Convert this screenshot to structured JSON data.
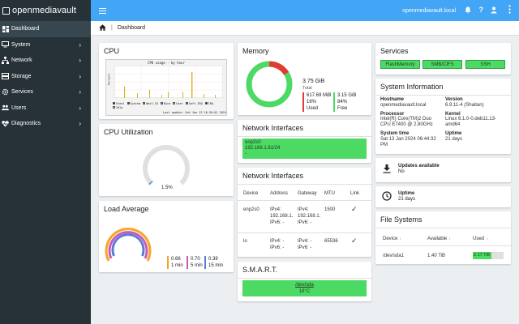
{
  "app": {
    "logo_text": "openmediavault",
    "hostname": "openmediavault.local"
  },
  "colors": {
    "sidebar": "#263238",
    "topbar": "#42a5f5",
    "accent_green": "#4cd964",
    "warn_red": "#e53935",
    "gauge_grey": "#e0e0e0"
  },
  "sidebar": {
    "items": [
      {
        "label": "Dashboard",
        "icon": "dashboard-icon"
      },
      {
        "label": "System",
        "icon": "monitor-icon"
      },
      {
        "label": "Network",
        "icon": "network-icon"
      },
      {
        "label": "Storage",
        "icon": "storage-icon"
      },
      {
        "label": "Services",
        "icon": "services-icon"
      },
      {
        "label": "Users",
        "icon": "users-icon"
      },
      {
        "label": "Diagnostics",
        "icon": "diagnostics-icon"
      }
    ]
  },
  "breadcrumb": {
    "current": "Dashboard"
  },
  "cpu": {
    "title": "CPU",
    "chart_title": "CPU usage - by hour",
    "y_axis_label": "Percent",
    "legend": [
      "Steal",
      "System",
      "Wait-IO",
      "Nice",
      "User",
      "Soft-IRQ",
      "IRQ",
      "Idle"
    ],
    "last_update": "Last update: Sat Jan 13 16:30:01 2024"
  },
  "cpu_util": {
    "title": "CPU Utilization",
    "percent": 1.5,
    "label": "1.5%"
  },
  "load": {
    "title": "Load Average",
    "items": [
      {
        "value": "0.66",
        "period": "1 min"
      },
      {
        "value": "0.70",
        "period": "5 min"
      },
      {
        "value": "0.39",
        "period": "15 min"
      }
    ]
  },
  "memory": {
    "title": "Memory",
    "total_value": "3.75 GiB",
    "total_label": "Total",
    "used_value": "617.69 MiB",
    "used_percent": "16%",
    "used_label": "Used",
    "free_value": "3.15 GiB",
    "free_percent": "84%",
    "free_label": "Free",
    "used_fraction": 0.16
  },
  "net1": {
    "title": "Network Interfaces",
    "iface": "enp2s0",
    "address": "192.168.1.61/24",
    "extra": "-"
  },
  "net2": {
    "title": "Network Interfaces",
    "headers": [
      "Device",
      "Address",
      "Gateway",
      "MTU",
      "Link"
    ],
    "rows": [
      {
        "device": "enp2s0",
        "addr1": "IPv4:",
        "addr2": "192.168.1.",
        "addr3": "IPv6: -",
        "gw1": "IPv4:",
        "gw2": "192.168.1.",
        "gw3": "IPv6: -",
        "mtu": "1500",
        "link": "✓"
      },
      {
        "device": "lo",
        "addr1": "IPv4: -",
        "addr2": "IPv6: -",
        "addr3": "",
        "gw1": "IPv4: -",
        "gw2": "IPv6: -",
        "gw3": "",
        "mtu": "65536",
        "link": "✓"
      }
    ]
  },
  "smart": {
    "title": "S.M.A.R.T.",
    "device": "/dev/sda",
    "temp": "18°C"
  },
  "services": {
    "title": "Services",
    "items": [
      "FlashMemory",
      "SMB/CIFS",
      "SSH"
    ]
  },
  "sysinfo": {
    "title": "System Information",
    "hostname_label": "Hostname",
    "hostname_value": "openmediavault.local",
    "version_label": "Version",
    "version_value": "6.9.11-4 (Shaitan)",
    "processor_label": "Processor",
    "processor_value1": "Intel(R) Core(TM)2 Duo",
    "processor_value2": "CPU E7400 @ 2.80GHz",
    "kernel_label": "Kernel",
    "kernel_value1": "Linux 6.1.0-0.deb11.13-",
    "kernel_value2": "amd64",
    "time_label": "System time",
    "time_value1": "Sat 13 Jan 2024 06:44:32",
    "time_value2": "PM",
    "uptime_label": "Uptime",
    "uptime_value": "21 days"
  },
  "updates": {
    "title": "Updates available",
    "value": "No"
  },
  "uptime": {
    "title": "Uptime",
    "value": "21 days"
  },
  "filesystems": {
    "title": "File Systems",
    "headers": [
      "Device",
      "Available",
      "Used"
    ],
    "rows": [
      {
        "device": "/dev/sda1",
        "available": "1.40 TiB",
        "used": "2.17 TiB",
        "used_fraction": 0.61
      }
    ]
  }
}
